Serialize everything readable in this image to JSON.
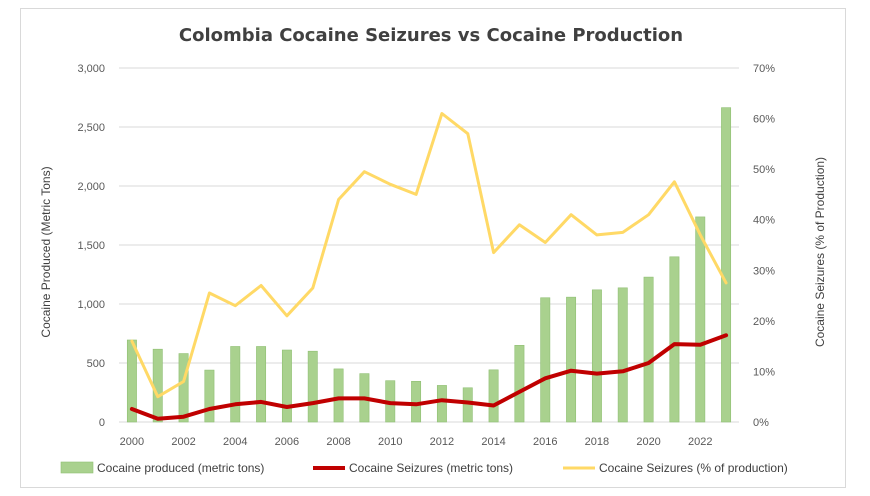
{
  "chart_data": {
    "type": "bar",
    "title": "Colombia Cocaine Seizures vs Cocaine Production",
    "ylabel": "Cocaine Produced (Metric Tons)",
    "y2label": "Cocaine Seizures (% of Production)",
    "x": [
      2000,
      2001,
      2002,
      2003,
      2004,
      2005,
      2006,
      2007,
      2008,
      2009,
      2010,
      2011,
      2012,
      2013,
      2014,
      2015,
      2016,
      2017,
      2018,
      2019,
      2020,
      2021,
      2022,
      2023
    ],
    "x_tick_labels": [
      "2000",
      "2002",
      "2004",
      "2006",
      "2008",
      "2010",
      "2012",
      "2014",
      "2016",
      "2018",
      "2020",
      "2022"
    ],
    "y_tick_labels": [
      "0",
      "500",
      "1,000",
      "1,500",
      "2,000",
      "2,500",
      "3,000"
    ],
    "y2_tick_labels": [
      "0%",
      "10%",
      "20%",
      "30%",
      "40%",
      "50%",
      "60%",
      "70%"
    ],
    "ylim": [
      0,
      3000
    ],
    "y2lim": [
      0,
      70
    ],
    "grid": true,
    "legend_position": "bottom",
    "series": [
      {
        "name": "Cocaine produced (metric tons)",
        "kind": "bar",
        "axis": "left",
        "color": "#a9d18e",
        "values": [
          695,
          617,
          580,
          440,
          640,
          640,
          610,
          600,
          450,
          410,
          350,
          345,
          310,
          290,
          442,
          650,
          1053,
          1058,
          1120,
          1137,
          1228,
          1400,
          1738,
          2664
        ]
      },
      {
        "name": "Cocaine Seizures (metric tons)",
        "kind": "line",
        "axis": "left",
        "color": "#c00000",
        "values": [
          110,
          28,
          45,
          110,
          150,
          170,
          127,
          160,
          200,
          200,
          160,
          150,
          185,
          165,
          140,
          255,
          370,
          435,
          410,
          430,
          500,
          660,
          655,
          735
        ]
      },
      {
        "name": "Cocaine Seizures (% of production)",
        "kind": "line",
        "axis": "right",
        "color": "#ffd966",
        "values": [
          16,
          5,
          8,
          25.5,
          23,
          27,
          21,
          26.5,
          44,
          49.5,
          47,
          45,
          61,
          57,
          33.5,
          39,
          35.5,
          41,
          37,
          37.5,
          41,
          47.5,
          37,
          27.5
        ]
      }
    ]
  }
}
